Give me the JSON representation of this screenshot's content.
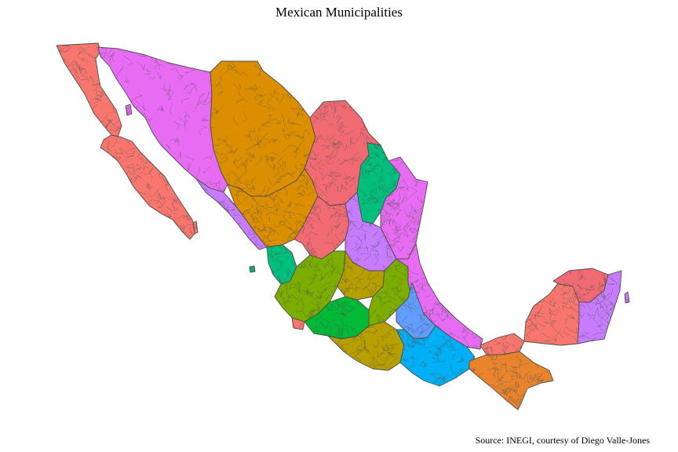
{
  "title": "Mexican Municipalities",
  "caption": "Source: INEGI, courtesy of Diego Valle-Jones",
  "legend": "none",
  "colors": {
    "salmon": "#f8766d",
    "orange": "#db8e00",
    "pink_red": "#f26b73",
    "teal": "#00ba38",
    "sea_green": "#00bf7d",
    "violet": "#e76bf3",
    "lilac": "#c77cff",
    "olive": "#7cae00",
    "khaki": "#b79f00",
    "green": "#00b936",
    "blue": "#619cff",
    "cyan": "#00b0f6",
    "deep_orange": "#e9842c",
    "borders": "#4d4d4d"
  }
}
